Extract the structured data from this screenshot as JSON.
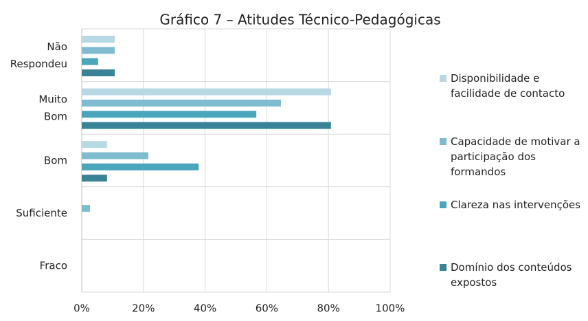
{
  "chart_data": {
    "type": "hbar",
    "title": "Gráfico 7 – Atitudes Técnico-Pedagógicas",
    "categories": [
      "Não Respondeu",
      "Muito Bom",
      "Bom",
      "Suficiente",
      "Fraco"
    ],
    "series": [
      {
        "name": "Disponibilidade e facilidade de contacto",
        "color": "#b7d9e3",
        "values": [
          10.7,
          80.8,
          8.2,
          0,
          0
        ]
      },
      {
        "name": "Capacidade de motivar a participação dos formandos",
        "color": "#7fbccf",
        "values": [
          10.7,
          64.6,
          21.6,
          2.7,
          0
        ]
      },
      {
        "name": "Clareza nas intervenções",
        "color": "#4aa5bd",
        "values": [
          5.3,
          56.6,
          37.9,
          0,
          0
        ]
      },
      {
        "name": "Domínio dos conteúdos expostos",
        "color": "#3a8296",
        "values": [
          10.7,
          80.8,
          8.2,
          0,
          0
        ]
      }
    ],
    "xlim": [
      0,
      100
    ],
    "xticks": [
      {
        "value": 0,
        "label": "0%"
      },
      {
        "value": 20,
        "label": "20%"
      },
      {
        "value": 40,
        "label": "40%"
      },
      {
        "value": 60,
        "label": "60%"
      },
      {
        "value": 80,
        "label": "80%"
      },
      {
        "value": 100,
        "label": "100%"
      }
    ],
    "grid": true,
    "legend": "right"
  }
}
